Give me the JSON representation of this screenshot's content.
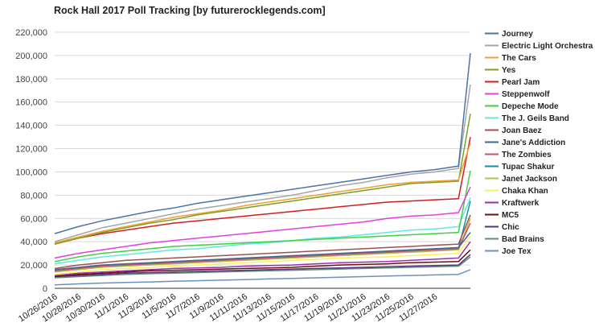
{
  "chart_data": {
    "type": "line",
    "title": "Rock Hall 2017 Poll Tracking [by futurerocklegends.com]",
    "xlabel": "",
    "ylabel": "",
    "x_start": "10/26/2016",
    "x_end": "11/30/2016",
    "ylim": [
      0,
      220000
    ],
    "y_ticks": [
      0,
      20000,
      40000,
      60000,
      80000,
      100000,
      120000,
      140000,
      160000,
      180000,
      200000,
      220000
    ],
    "y_tick_labels": [
      "0",
      "20,000",
      "40,000",
      "60,000",
      "80,000",
      "100,000",
      "120,000",
      "140,000",
      "160,000",
      "180,000",
      "200,000",
      "220,000"
    ],
    "x_tick_labels": [
      "10/26/2016",
      "10/28/2016",
      "10/30/2016",
      "11/1/2016",
      "11/3/2016",
      "11/5/2016",
      "11/7/2016",
      "11/9/2016",
      "11/11/2016",
      "11/13/2016",
      "11/15/2016",
      "11/17/2016",
      "11/19/2016",
      "11/21/2016",
      "11/23/2016",
      "11/25/2016",
      "11/27/2016"
    ],
    "grid": "horizontal",
    "legend_position": "right",
    "x_dates": [
      "10/26/2016",
      "10/28/2016",
      "10/30/2016",
      "11/1/2016",
      "11/3/2016",
      "11/5/2016",
      "11/7/2016",
      "11/9/2016",
      "11/11/2016",
      "11/13/2016",
      "11/15/2016",
      "11/17/2016",
      "11/19/2016",
      "11/21/2016",
      "11/23/2016",
      "11/25/2016",
      "11/27/2016",
      "11/29/2016",
      "11/30/2016"
    ],
    "series": [
      {
        "name": "Journey",
        "color": "#4a74a8",
        "values": [
          47000,
          53000,
          58000,
          62000,
          66000,
          69000,
          73000,
          76000,
          79000,
          82000,
          85000,
          88000,
          91000,
          94000,
          97000,
          100000,
          102000,
          105000,
          202000
        ]
      },
      {
        "name": "Electric Light Orchestra",
        "color": "#a6a6a6",
        "values": [
          40000,
          46000,
          52000,
          56000,
          60000,
          64000,
          68000,
          71000,
          74000,
          77000,
          80000,
          84000,
          88000,
          91000,
          95000,
          98000,
          100000,
          103000,
          175000
        ]
      },
      {
        "name": "The Cars",
        "color": "#f0a030",
        "values": [
          39000,
          44000,
          49000,
          53000,
          57000,
          61000,
          64000,
          67000,
          71000,
          74000,
          77000,
          80000,
          83000,
          86000,
          89000,
          91000,
          92000,
          93000,
          125000
        ]
      },
      {
        "name": "Yes",
        "color": "#7aa028",
        "values": [
          38000,
          43000,
          48000,
          52000,
          56000,
          59000,
          63000,
          66000,
          69000,
          72000,
          75000,
          78000,
          81000,
          84000,
          87000,
          90000,
          91000,
          92000,
          150000
        ]
      },
      {
        "name": "Pearl Jam",
        "color": "#d02020",
        "values": [
          38000,
          43000,
          47000,
          50000,
          53000,
          56000,
          58000,
          60000,
          62000,
          64000,
          66000,
          68000,
          70000,
          72000,
          74000,
          75000,
          76000,
          77000,
          130000
        ]
      },
      {
        "name": "Steppenwolf",
        "color": "#e040e0",
        "values": [
          26000,
          30000,
          33000,
          36000,
          39000,
          41000,
          43000,
          45000,
          47000,
          49000,
          51000,
          53000,
          55000,
          57000,
          60000,
          62000,
          63000,
          65000,
          87000
        ]
      },
      {
        "name": "Depeche Mode",
        "color": "#40d040",
        "values": [
          23000,
          27000,
          30000,
          32000,
          34000,
          36000,
          37000,
          38000,
          39000,
          40000,
          41000,
          42000,
          43000,
          44000,
          45000,
          46000,
          47000,
          48000,
          101000
        ]
      },
      {
        "name": "The J. Geils Band",
        "color": "#60e8e8",
        "values": [
          21000,
          24000,
          27000,
          29000,
          31000,
          33000,
          34000,
          36000,
          38000,
          39000,
          41000,
          43000,
          44000,
          46000,
          48000,
          50000,
          51000,
          53000,
          78000
        ]
      },
      {
        "name": "Joan Baez",
        "color": "#a05050",
        "values": [
          17000,
          20000,
          22000,
          24000,
          25000,
          26000,
          27000,
          28000,
          29000,
          30000,
          31000,
          32000,
          33000,
          34000,
          35000,
          36000,
          37000,
          38000,
          63000
        ]
      },
      {
        "name": "Jane's Addiction",
        "color": "#3a6a8a",
        "values": [
          16000,
          18000,
          20000,
          21000,
          22000,
          23000,
          24000,
          25000,
          26000,
          27000,
          28000,
          29000,
          30000,
          31000,
          32000,
          33000,
          34000,
          35000,
          48000
        ]
      },
      {
        "name": "The Zombies",
        "color": "#c85078",
        "values": [
          15000,
          17000,
          19000,
          20000,
          21000,
          22000,
          23000,
          24000,
          25000,
          26000,
          27000,
          28000,
          29000,
          30000,
          31000,
          32000,
          33000,
          34000,
          56000
        ]
      },
      {
        "name": "Tupac Shakur",
        "color": "#1a8aaa",
        "values": [
          15000,
          17000,
          19000,
          20000,
          21000,
          22000,
          23000,
          24000,
          25000,
          26000,
          27000,
          28000,
          29000,
          30000,
          31000,
          32000,
          33000,
          34000,
          75000
        ]
      },
      {
        "name": "Janet Jackson",
        "color": "#b8c040",
        "values": [
          14000,
          16000,
          18000,
          19000,
          20000,
          21000,
          22000,
          23000,
          24000,
          25000,
          26000,
          27000,
          28000,
          29000,
          30000,
          31000,
          32000,
          33000,
          60000
        ]
      },
      {
        "name": "Chaka Khan",
        "color": "#f8f060",
        "values": [
          12000,
          14000,
          16000,
          17000,
          18000,
          19000,
          20000,
          21000,
          22000,
          23000,
          24000,
          25000,
          26000,
          26500,
          27000,
          28000,
          29000,
          30000,
          45000
        ]
      },
      {
        "name": "Kraftwerk",
        "color": "#9830b0",
        "values": [
          11000,
          13000,
          14000,
          15000,
          16000,
          17000,
          17500,
          18000,
          19000,
          19500,
          20000,
          21000,
          22000,
          22500,
          23000,
          24000,
          25000,
          26000,
          40000
        ]
      },
      {
        "name": "MC5",
        "color": "#6a1010",
        "values": [
          10000,
          12000,
          13000,
          14000,
          15000,
          15500,
          16000,
          16500,
          17000,
          17500,
          18000,
          19000,
          20000,
          20500,
          21000,
          22000,
          22500,
          23000,
          33000
        ]
      },
      {
        "name": "Chic",
        "color": "#5a3078",
        "values": [
          10000,
          11000,
          12000,
          13000,
          13500,
          14000,
          14500,
          15000,
          15500,
          16000,
          16500,
          17000,
          17500,
          18000,
          18500,
          19000,
          19500,
          20000,
          29000
        ]
      },
      {
        "name": "Bad Brains",
        "color": "#5a9078",
        "values": [
          9000,
          10000,
          11000,
          12000,
          12500,
          13000,
          13500,
          14000,
          14500,
          15000,
          15500,
          16000,
          16500,
          17000,
          17500,
          18000,
          18500,
          19000,
          27000
        ]
      },
      {
        "name": "Joe Tex",
        "color": "#6a90c0",
        "values": [
          3000,
          3800,
          4500,
          5000,
          5500,
          6000,
          6500,
          7000,
          7500,
          8000,
          8500,
          9000,
          9500,
          10000,
          10500,
          11000,
          11500,
          12000,
          16000
        ]
      }
    ]
  }
}
